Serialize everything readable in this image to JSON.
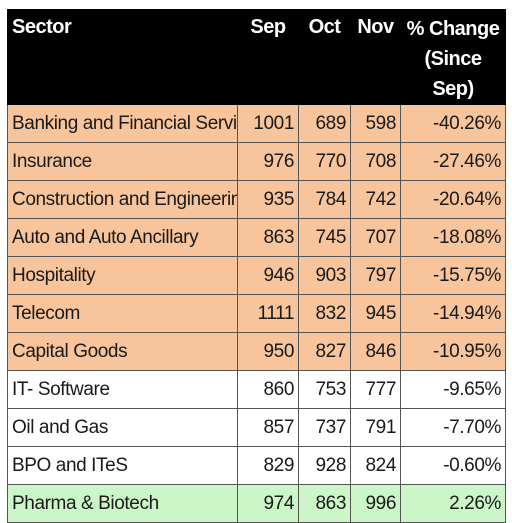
{
  "table": {
    "headers": {
      "sector": "Sector",
      "sep": "Sep",
      "oct": "Oct",
      "nov": "Nov",
      "change_line1": "% Change",
      "change_line2": "(Since Sep)"
    },
    "colors": {
      "header_bg": "#000000",
      "decline_bg": "#f7c49b",
      "mild_bg": "#ffffff",
      "gain_bg": "#ccf5c8"
    }
  },
  "chart_data": {
    "type": "table",
    "columns": [
      "Sector",
      "Sep",
      "Oct",
      "Nov",
      "% Change (Since Sep)"
    ],
    "rows": [
      {
        "sector": "Banking and Financial Services",
        "sep": "1001",
        "oct": "689",
        "nov": "598",
        "change": "-40.26%",
        "band": "decline"
      },
      {
        "sector": "Insurance",
        "sep": "976",
        "oct": "770",
        "nov": "708",
        "change": "-27.46%",
        "band": "decline"
      },
      {
        "sector": "Construction and Engineering",
        "sep": "935",
        "oct": "784",
        "nov": "742",
        "change": "-20.64%",
        "band": "decline"
      },
      {
        "sector": "Auto and Auto Ancillary",
        "sep": "863",
        "oct": "745",
        "nov": "707",
        "change": "-18.08%",
        "band": "decline"
      },
      {
        "sector": "Hospitality",
        "sep": "946",
        "oct": "903",
        "nov": "797",
        "change": "-15.75%",
        "band": "decline"
      },
      {
        "sector": "Telecom",
        "sep": "1111",
        "oct": "832",
        "nov": "945",
        "change": "-14.94%",
        "band": "decline"
      },
      {
        "sector": "Capital Goods",
        "sep": "950",
        "oct": "827",
        "nov": "846",
        "change": "-10.95%",
        "band": "decline"
      },
      {
        "sector": "IT- Software",
        "sep": "860",
        "oct": "753",
        "nov": "777",
        "change": "-9.65%",
        "band": "mild"
      },
      {
        "sector": "Oil and Gas",
        "sep": "857",
        "oct": "737",
        "nov": "791",
        "change": "-7.70%",
        "band": "mild"
      },
      {
        "sector": "BPO and ITeS",
        "sep": "829",
        "oct": "928",
        "nov": "824",
        "change": "-0.60%",
        "band": "mild"
      },
      {
        "sector": "Pharma & Biotech",
        "sep": "974",
        "oct": "863",
        "nov": "996",
        "change": "2.26%",
        "band": "gain"
      }
    ]
  }
}
